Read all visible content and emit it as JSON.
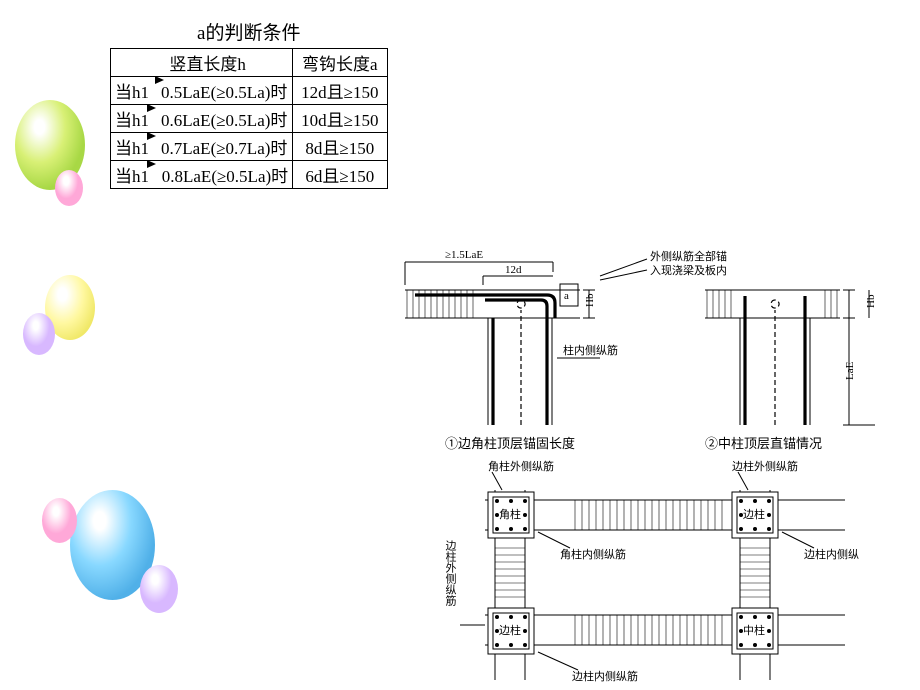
{
  "table": {
    "caption": "a的判断条件",
    "header": [
      "竖直长度h",
      "弯钩长度a"
    ],
    "rows": [
      {
        "c1": "当h1",
        "arrow": true,
        "c2": "0.5LaE(≥0.5La)时",
        "c3": "12d且≥150"
      },
      {
        "c1": "当h1",
        "arrow": true,
        "c2": "0.6LaE(≥0.5La)时",
        "c3": "10d且≥150"
      },
      {
        "c1": "当h1",
        "arrow": true,
        "c2": "0.7LaE(≥0.7La)时",
        "c3": "8d且≥150"
      },
      {
        "c1": "当h1",
        "arrow": false,
        "c2": "0.8LaE(≥0.5La)时",
        "c3": "6d且≥150"
      }
    ]
  },
  "diag1": {
    "dim1": "≥1.5LaE",
    "dim2": "12d",
    "dimHb": "Hb",
    "dimA": "a",
    "dimLaE": "LaE",
    "dimHb2": "Hb",
    "note1a": "外侧纵筋全部锚",
    "note1b": "入现浇梁及板内",
    "note2": "柱内侧纵筋",
    "cap1": "①边角柱顶层锚固长度",
    "cap2": "②中柱顶层直锚情况"
  },
  "diag2": {
    "corner": "角柱",
    "edge": "边柱",
    "mid": "中柱",
    "l1": "角柱外侧纵筋",
    "l2": "边柱外侧纵筋",
    "l3": "角柱内侧纵筋",
    "l4": "边柱内侧纵",
    "l5": "边柱外侧纵筋",
    "l6": "边柱内侧纵筋"
  }
}
